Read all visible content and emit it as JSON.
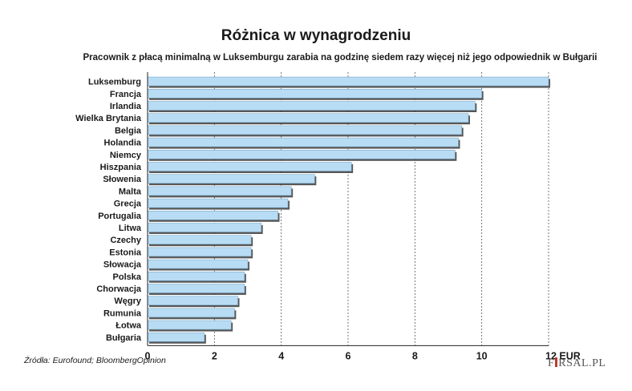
{
  "chart_data": {
    "type": "bar",
    "orientation": "horizontal",
    "title": "Różnica w wynagrodzeniu",
    "subtitle": "Pracownik z płacą minimalną w Luksemburgu zarabia na godzinę siedem razy więcej niż jego odpowiednik w Bułgarii",
    "categories": [
      "Luksemburg",
      "Francja",
      "Irlandia",
      "Wielka Brytania",
      "Belgia",
      "Holandia",
      "Niemcy",
      "Hiszpania",
      "Słowenia",
      "Malta",
      "Grecja",
      "Portugalia",
      "Litwa",
      "Czechy",
      "Estonia",
      "Słowacja",
      "Polska",
      "Chorwacja",
      "Węgry",
      "Rumunia",
      "Łotwa",
      "Bułgaria"
    ],
    "values": [
      12.0,
      10.0,
      9.8,
      9.6,
      9.4,
      9.3,
      9.2,
      6.1,
      5.0,
      4.3,
      4.2,
      3.9,
      3.4,
      3.1,
      3.1,
      3.0,
      2.9,
      2.9,
      2.7,
      2.6,
      2.5,
      1.7
    ],
    "ticks": [
      "0",
      "2",
      "4",
      "6",
      "8",
      "10",
      "12 EUR"
    ],
    "xlim": [
      0,
      12
    ],
    "grid": "dashed vertical",
    "bar_color": "#b8dcf4"
  },
  "source": "Źródła: Eurofound; BloombergOpinion",
  "logo": {
    "left": "F",
    "right": "RSAL.PL"
  }
}
